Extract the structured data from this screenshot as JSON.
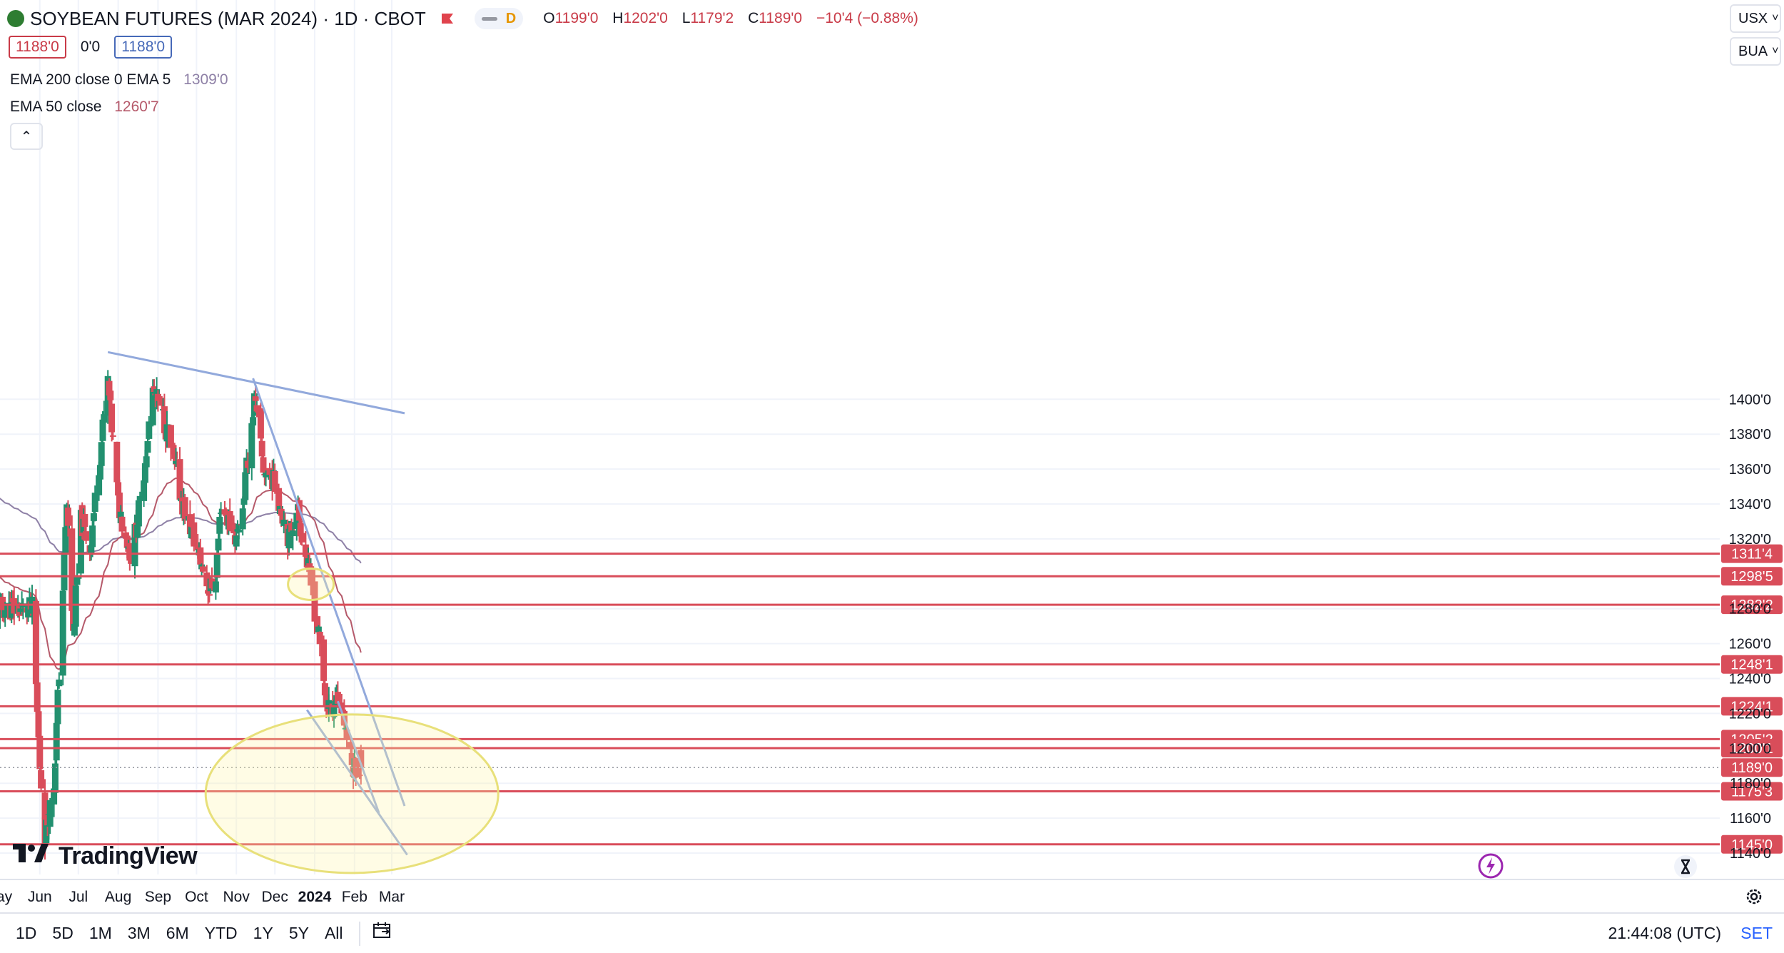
{
  "header": {
    "title": "SOYBEAN FUTURES (MAR 2024) · 1D · CBOT",
    "status_letter": "D",
    "ohlc": [
      {
        "k": "O",
        "v": "1199'0"
      },
      {
        "k": "H",
        "v": "1202'0"
      },
      {
        "k": "L",
        "v": "1179'2"
      },
      {
        "k": "C",
        "v": "1189'0"
      }
    ],
    "change": "−10'4 (−0.88%)",
    "bid": "1188'0",
    "spread": "0'0",
    "ask": "1188'0"
  },
  "indicators": [
    {
      "label": "EMA 200 close 0 EMA 5",
      "value": "1309'0",
      "color": "#8e80a6"
    },
    {
      "label": "EMA 50 close",
      "value": "1260'7",
      "color": "#b5596a"
    }
  ],
  "collapse_icon": "chevron-up-icon",
  "top_right": {
    "currency": "USX",
    "unit": "BUA"
  },
  "chart_data": {
    "type": "candlestick",
    "title": "SOYBEAN FUTURES (MAR 2024) · 1D · CBOT",
    "y_range": [
      1135,
      1440
    ],
    "y_ticks": [
      "1140'0",
      "1160'0",
      "1180'0",
      "1200'0",
      "1220'0",
      "1240'0",
      "1260'0",
      "1280'0",
      "1320'0",
      "1340'0",
      "1360'0",
      "1380'0",
      "1400'0"
    ],
    "x_labels": [
      "ay",
      "Jun",
      "Jul",
      "Aug",
      "Sep",
      "Oct",
      "Nov",
      "Dec",
      "2024",
      "Feb",
      "Mar"
    ],
    "horizontal_levels": [
      {
        "label": "1311'4",
        "value": 1311.5
      },
      {
        "label": "1298'5",
        "value": 1298.6
      },
      {
        "label": "1282'2",
        "value": 1282.3
      },
      {
        "label": "1248'1",
        "value": 1248.1
      },
      {
        "label": "1224'1",
        "value": 1224.1
      },
      {
        "label": "1205'2",
        "value": 1205.3
      },
      {
        "label": "1200'1",
        "value": 1200.1
      },
      {
        "label": "1175'3",
        "value": 1175.4
      },
      {
        "label": "1145'0",
        "value": 1145.0
      }
    ],
    "last_price": {
      "label": "1189'0",
      "value": 1189
    },
    "key_closes": [
      {
        "date": "2023-05-26",
        "close": 1280
      },
      {
        "date": "2023-06-01",
        "close": 1190
      },
      {
        "date": "2023-06-05",
        "close": 1150
      },
      {
        "date": "2023-06-12",
        "close": 1180
      },
      {
        "date": "2023-06-22",
        "close": 1340
      },
      {
        "date": "2023-06-27",
        "close": 1265
      },
      {
        "date": "2023-07-03",
        "close": 1330
      },
      {
        "date": "2023-07-10",
        "close": 1315
      },
      {
        "date": "2023-07-24",
        "close": 1410
      },
      {
        "date": "2023-08-01",
        "close": 1340
      },
      {
        "date": "2023-08-11",
        "close": 1310
      },
      {
        "date": "2023-08-18",
        "close": 1340
      },
      {
        "date": "2023-08-28",
        "close": 1405
      },
      {
        "date": "2023-09-05",
        "close": 1390
      },
      {
        "date": "2023-09-13",
        "close": 1365
      },
      {
        "date": "2023-09-20",
        "close": 1340
      },
      {
        "date": "2023-09-29",
        "close": 1320
      },
      {
        "date": "2023-10-11",
        "close": 1290
      },
      {
        "date": "2023-10-16",
        "close": 1300
      },
      {
        "date": "2023-10-20",
        "close": 1340
      },
      {
        "date": "2023-11-01",
        "close": 1320
      },
      {
        "date": "2023-11-06",
        "close": 1340
      },
      {
        "date": "2023-11-15",
        "close": 1400
      },
      {
        "date": "2023-11-22",
        "close": 1360
      },
      {
        "date": "2023-11-29",
        "close": 1355
      },
      {
        "date": "2023-12-05",
        "close": 1340
      },
      {
        "date": "2023-12-12",
        "close": 1320
      },
      {
        "date": "2023-12-18",
        "close": 1340
      },
      {
        "date": "2023-12-27",
        "close": 1302
      },
      {
        "date": "2024-01-03",
        "close": 1270
      },
      {
        "date": "2024-01-11",
        "close": 1220
      },
      {
        "date": "2024-01-18",
        "close": 1230
      },
      {
        "date": "2024-01-23",
        "close": 1220
      },
      {
        "date": "2024-01-30",
        "close": 1190
      },
      {
        "date": "2024-02-06",
        "close": 1189
      }
    ]
  },
  "watermark": "TradingView",
  "bottom_bar": {
    "timeframes": [
      "1D",
      "5D",
      "1M",
      "3M",
      "6M",
      "YTD",
      "1Y",
      "5Y",
      "All"
    ],
    "clock": "21:44:08 (UTC)",
    "session": "SET"
  }
}
